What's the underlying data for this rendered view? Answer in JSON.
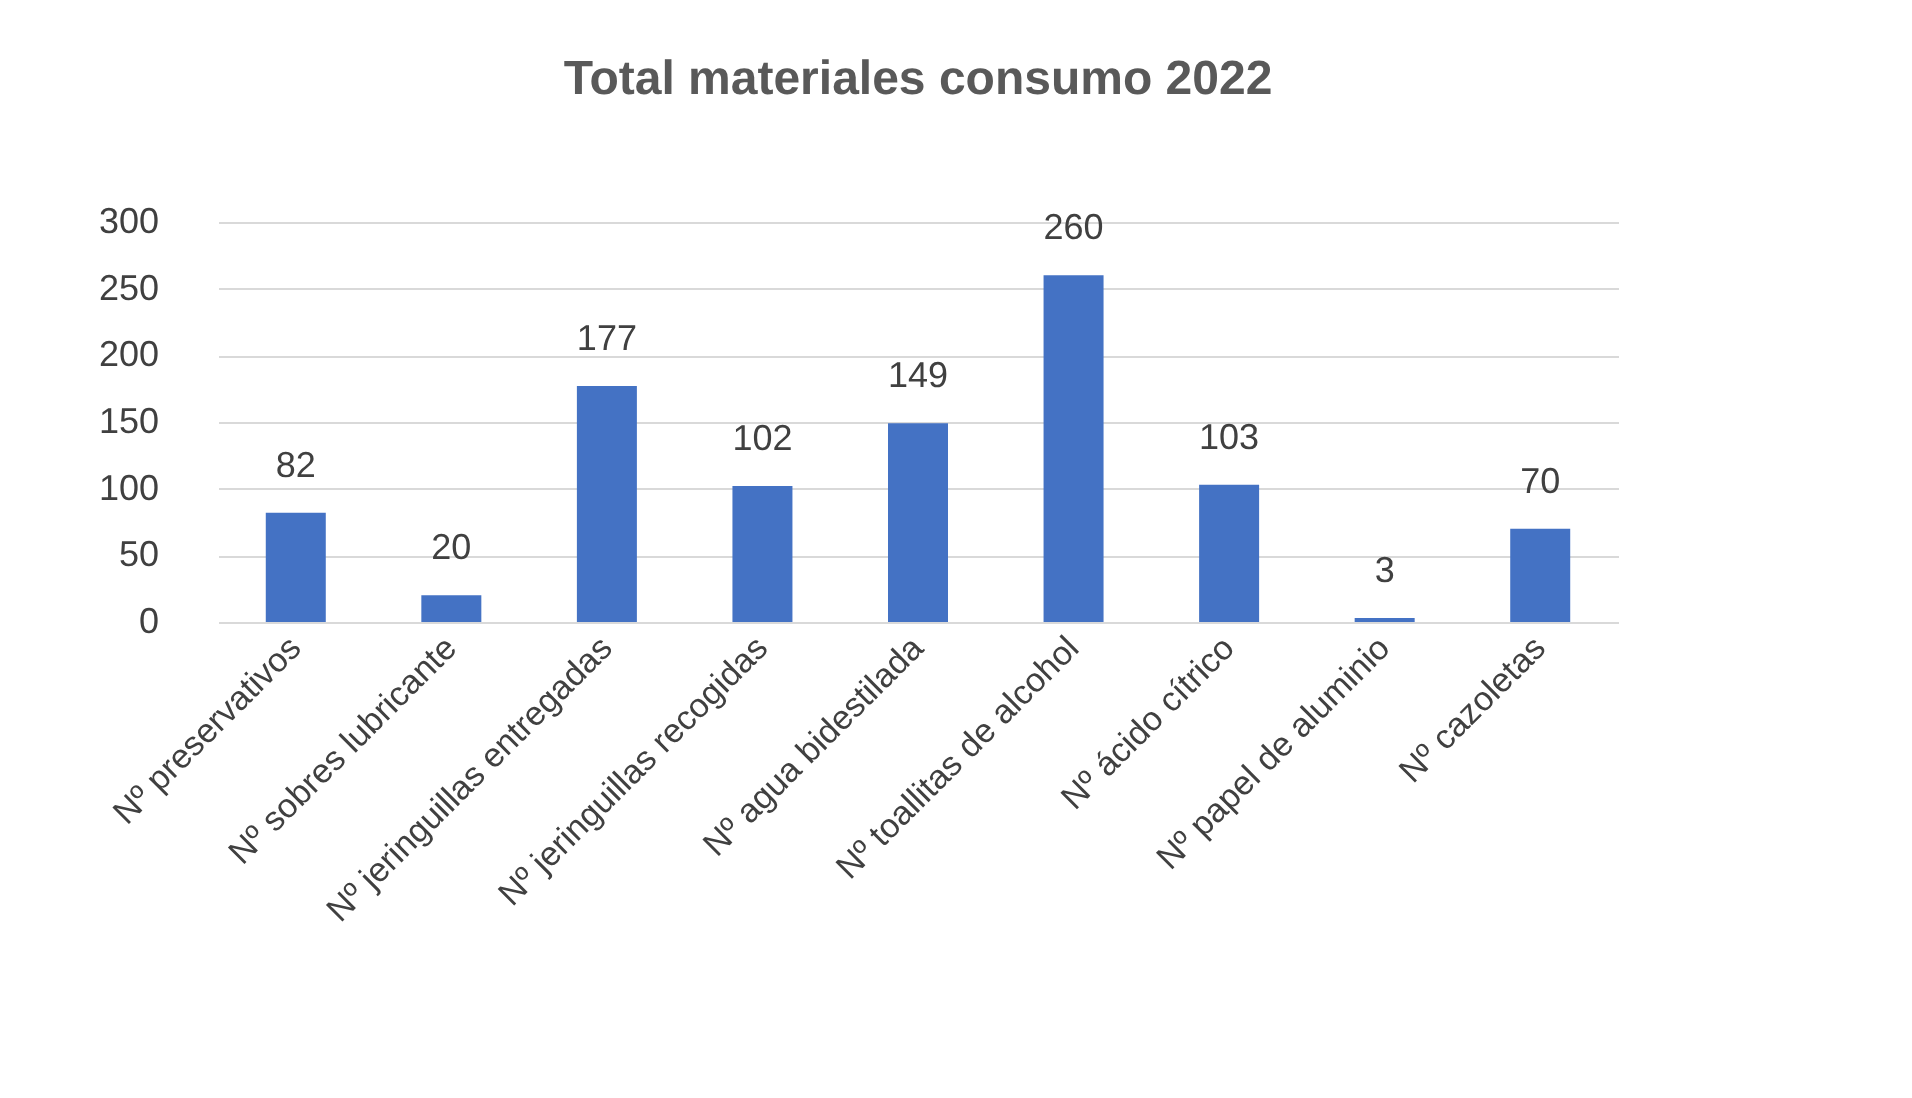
{
  "chart_data": {
    "type": "bar",
    "title": "Total materiales consumo 2022",
    "categories": [
      "Nº preservativos",
      "Nº sobres lubricante",
      "Nº jeringuillas entregadas",
      "Nº jeringuillas recogidas",
      "Nº agua bidestilada",
      "Nº toallitas de alcohol",
      "Nº ácido cítrico",
      "Nº papel de aluminio",
      "Nº cazoletas"
    ],
    "values": [
      82,
      20,
      177,
      102,
      149,
      260,
      103,
      3,
      70
    ],
    "color": "#4472c4",
    "ylim": [
      0,
      300
    ],
    "yticks": [
      0,
      50,
      100,
      150,
      200,
      250,
      300
    ],
    "grid": "y",
    "data_labels": true
  }
}
